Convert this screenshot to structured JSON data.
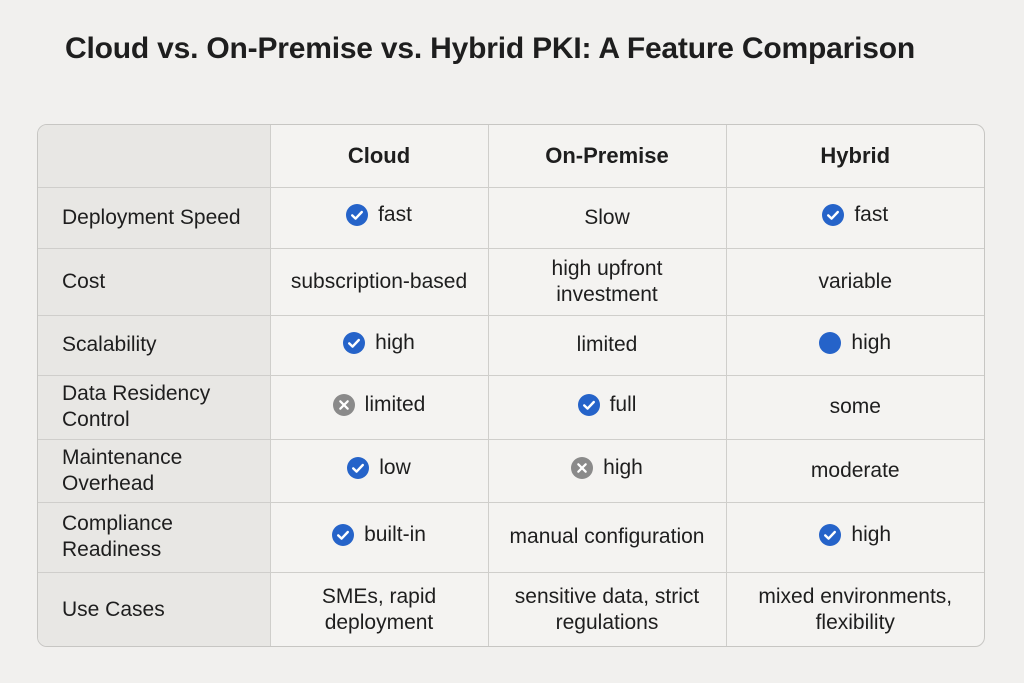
{
  "title": "Cloud vs. On-Premise vs. Hybrid PKI: A Feature Comparison",
  "columns": [
    "",
    "Cloud",
    "On-Premise",
    "Hybrid"
  ],
  "rows": [
    {
      "feature": "Deployment Speed",
      "cells": [
        {
          "text": "fast",
          "icon": "check-icon"
        },
        {
          "text": "Slow",
          "icon": ""
        },
        {
          "text": "fast",
          "icon": "check-icon"
        }
      ]
    },
    {
      "feature": "Cost",
      "cells": [
        {
          "text": "subscription-based",
          "icon": ""
        },
        {
          "text": "high upfront investment",
          "icon": ""
        },
        {
          "text": "variable",
          "icon": ""
        }
      ]
    },
    {
      "feature": "Scalability",
      "cells": [
        {
          "text": "high",
          "icon": "check-icon"
        },
        {
          "text": "limited",
          "icon": ""
        },
        {
          "text": "high",
          "icon": "dot-icon"
        }
      ]
    },
    {
      "feature": "Data Residency Control",
      "cells": [
        {
          "text": "limited",
          "icon": "x-icon"
        },
        {
          "text": "full",
          "icon": "check-icon"
        },
        {
          "text": "some",
          "icon": ""
        }
      ]
    },
    {
      "feature": "Maintenance Overhead",
      "cells": [
        {
          "text": "low",
          "icon": "check-icon"
        },
        {
          "text": "high",
          "icon": "x-icon"
        },
        {
          "text": "moderate",
          "icon": ""
        }
      ]
    },
    {
      "feature": "Compliance Readiness",
      "cells": [
        {
          "text": "built-in",
          "icon": "check-icon"
        },
        {
          "text": "manual configuration",
          "icon": ""
        },
        {
          "text": "high",
          "icon": "check-icon"
        }
      ]
    },
    {
      "feature": "Use Cases",
      "cells": [
        {
          "text": "SMEs, rapid deployment",
          "icon": ""
        },
        {
          "text": "sensitive data, strict regulations",
          "icon": ""
        },
        {
          "text": "mixed environments, flexibility",
          "icon": ""
        }
      ]
    }
  ],
  "colors": {
    "check": "#2563c9",
    "cross": "#8a8a8a",
    "text": "#1e1e1e"
  }
}
